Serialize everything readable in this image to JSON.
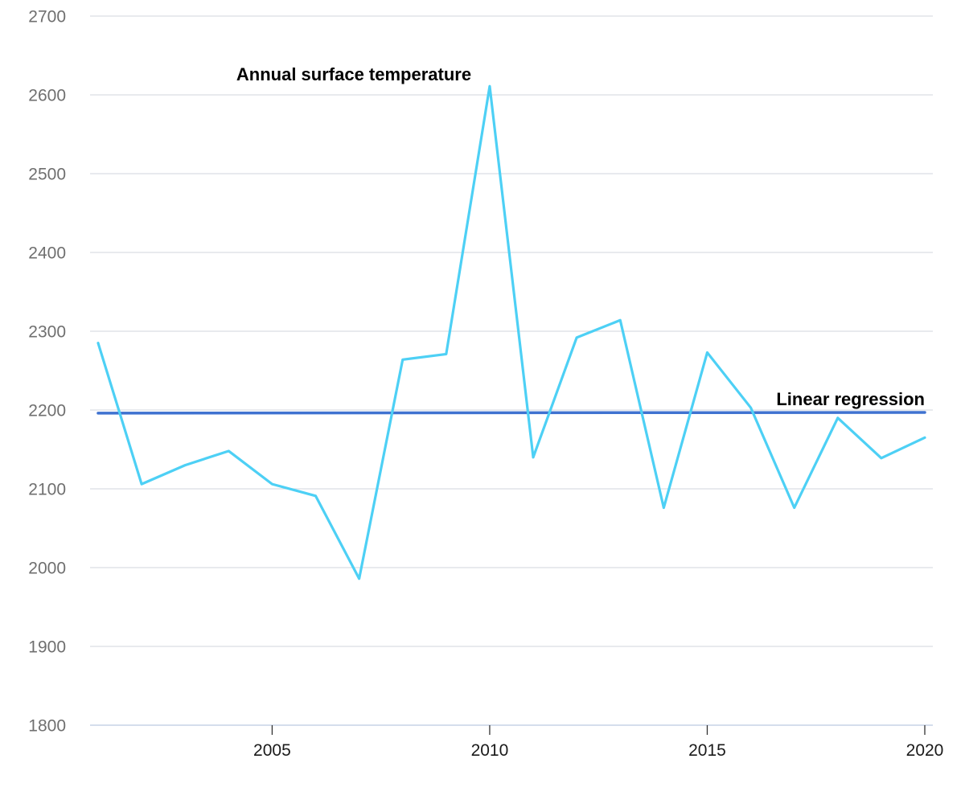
{
  "chart_data": {
    "type": "line",
    "title": "",
    "xlabel": "",
    "ylabel": "",
    "xlim": [
      2001,
      2020
    ],
    "ylim": [
      1800,
      2700
    ],
    "y_ticks": [
      1800,
      1900,
      2000,
      2100,
      2200,
      2300,
      2400,
      2500,
      2600,
      2700
    ],
    "x_ticks": [
      2005,
      2010,
      2015,
      2020
    ],
    "grid": true,
    "legend": "none (series labeled directly on plot)",
    "series": [
      {
        "name": "Annual surface temperature",
        "color": "#4dd0f5",
        "x": [
          2001,
          2002,
          2003,
          2004,
          2005,
          2006,
          2007,
          2008,
          2009,
          2010,
          2011,
          2012,
          2013,
          2014,
          2015,
          2016,
          2017,
          2018,
          2019,
          2020
        ],
        "values": [
          2285,
          2106,
          2130,
          2148,
          2106,
          2091,
          1986,
          2264,
          2271,
          2611,
          2140,
          2292,
          2314,
          2076,
          2273,
          2203,
          2076,
          2190,
          2139,
          2165
        ]
      },
      {
        "name": "Linear regression",
        "color": "#3f72d0",
        "x": [
          2001,
          2020
        ],
        "values": [
          2196,
          2197
        ]
      }
    ]
  }
}
